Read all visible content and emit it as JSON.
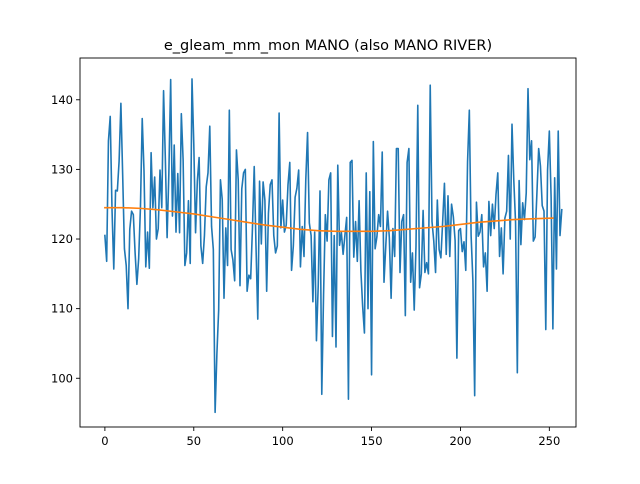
{
  "chart_data": {
    "type": "line",
    "title": "e_gleam_mm_mon MANO (also MANO RIVER)",
    "xlabel": "",
    "ylabel": "",
    "xlim": [
      -14,
      265
    ],
    "ylim": [
      93,
      146
    ],
    "xticks": [
      0,
      50,
      100,
      150,
      200,
      250
    ],
    "yticks": [
      100,
      110,
      120,
      130,
      140
    ],
    "grid": false,
    "legend": "none",
    "series": [
      {
        "color": "#1f77b4",
        "x_start": 0,
        "x_step": 1,
        "values": [
          120.5,
          116.8,
          134.1,
          137.6,
          124.3,
          115.7,
          127.0,
          126.9,
          131.2,
          139.5,
          129.2,
          118.6,
          116.2,
          110.0,
          121.4,
          124.0,
          123.5,
          118.0,
          113.5,
          117.2,
          124.5,
          137.3,
          129.8,
          116.0,
          121.0,
          115.8,
          132.4,
          124.5,
          128.9,
          120.0,
          121.5,
          129.9,
          124.5,
          141.3,
          131.6,
          120.2,
          129.7,
          142.9,
          123.3,
          133.5,
          121.0,
          129.4,
          120.9,
          138.0,
          131.4,
          116.2,
          118.0,
          125.5,
          116.5,
          143.0,
          133.7,
          120.9,
          128.3,
          131.7,
          119.0,
          116.5,
          120.5,
          127.5,
          129.5,
          136.2,
          121.8,
          118.5,
          95.1,
          103.5,
          109.8,
          128.5,
          125.7,
          111.5,
          121.6,
          116.2,
          138.5,
          118.5,
          117.0,
          114.0,
          132.8,
          128.5,
          113.3,
          127.2,
          129.5,
          130.0,
          112.5,
          114.8,
          114.3,
          121.5,
          130.4,
          119.0,
          108.5,
          128.3,
          119.3,
          128.2,
          125.6,
          112.5,
          123.7,
          127.8,
          128.5,
          120.5,
          118.0,
          119.0,
          138.1,
          121.6,
          125.6,
          121.0,
          122.0,
          127.8,
          131.0,
          115.5,
          119.0,
          126.0,
          127.3,
          129.9,
          116.0,
          121.8,
          117.5,
          128.5,
          135.3,
          122.3,
          120.5,
          111.0,
          121.0,
          105.4,
          113.3,
          126.9,
          97.7,
          112.0,
          123.5,
          119.7,
          128.5,
          129.5,
          106.0,
          120.5,
          104.5,
          130.6,
          119.1,
          121.0,
          117.8,
          120.5,
          123.1,
          97.0,
          131.0,
          131.3,
          117.4,
          122.5,
          116.8,
          125.5,
          115.4,
          110.3,
          106.5,
          129.5,
          110.0,
          126.8,
          100.5,
          134.0,
          118.6,
          120.3,
          123.5,
          121.8,
          132.5,
          113.8,
          119.0,
          124.0,
          120.2,
          111.5,
          121.5,
          117.5,
          133.0,
          133.0,
          115.2,
          122.5,
          123.5,
          109.0,
          131.0,
          133.0,
          113.8,
          118.0,
          109.8,
          119.0,
          139.2,
          113.0,
          115.0,
          124.1,
          115.2,
          116.6,
          115.0,
          142.1,
          122.5,
          119.7,
          115.2,
          125.6,
          118.5,
          117.3,
          122.5,
          128.0,
          117.8,
          126.2,
          117.5,
          125.0,
          123.2,
          119.8,
          102.9,
          121.2,
          121.5,
          118.2,
          119.6,
          115.5,
          131.1,
          138.5,
          120.5,
          114.0,
          97.5,
          125.3,
          120.4,
          121.0,
          123.5,
          116.0,
          118.0,
          112.5,
          125.4,
          120.5,
          125.0,
          121.5,
          126.4,
          129.5,
          117.5,
          121.6,
          115.0,
          123.0,
          124.0,
          132.0,
          120.0,
          136.5,
          128.5,
          122.4,
          100.8,
          128.4,
          119.2,
          125.2,
          122.8,
          126.6,
          141.6,
          131.4,
          134.1,
          119.7,
          120.3,
          126.5,
          133.0,
          130.5,
          124.8,
          124.0,
          107.0,
          129.9,
          135.5,
          126.0,
          107.1,
          128.8,
          115.7,
          135.5,
          120.5,
          124.2
        ]
      },
      {
        "color": "#ff7f0e",
        "x": [
          0,
          10,
          20,
          30,
          40,
          50,
          60,
          70,
          80,
          90,
          100,
          110,
          120,
          130,
          140,
          150,
          160,
          170,
          180,
          190,
          200,
          210,
          220,
          230,
          240,
          252
        ],
        "values": [
          124.5,
          124.5,
          124.4,
          124.2,
          123.9,
          123.6,
          123.2,
          122.8,
          122.4,
          122.0,
          121.7,
          121.4,
          121.2,
          121.1,
          121.1,
          121.1,
          121.2,
          121.4,
          121.6,
          121.8,
          122.1,
          122.4,
          122.6,
          122.8,
          122.9,
          123.0
        ]
      }
    ]
  }
}
